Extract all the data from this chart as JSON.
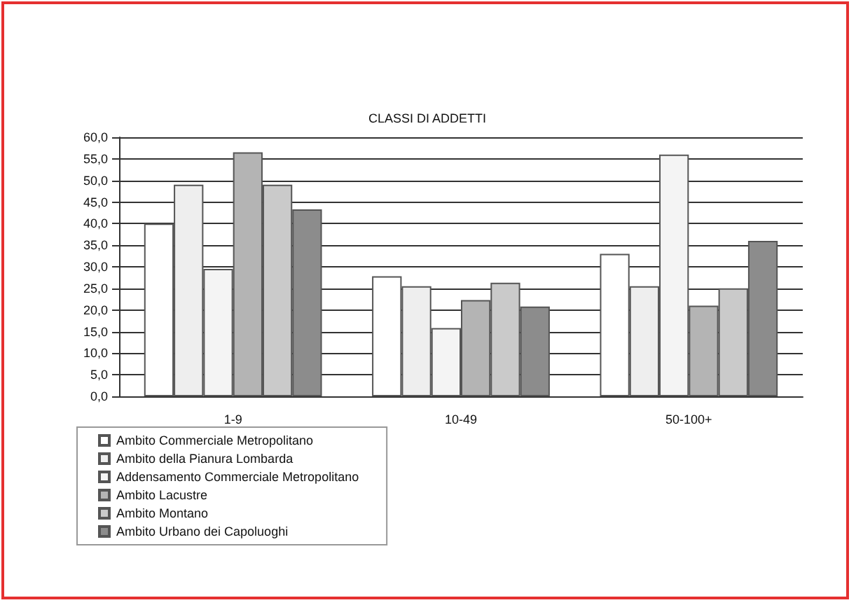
{
  "chart_data": {
    "type": "bar",
    "title": "CLASSI DI ADDETTI",
    "categories": [
      "1-9",
      "10-49",
      "50-100+"
    ],
    "series": [
      {
        "name": "Ambito Commerciale Metropolitano",
        "color": "#ffffff",
        "values": [
          40.0,
          27.8,
          33.0
        ]
      },
      {
        "name": "Ambito della Pianura Lombarda",
        "color": "#eeeeee",
        "values": [
          49.0,
          25.5,
          25.5
        ]
      },
      {
        "name": "Addensamento Commerciale Metropolitano",
        "color": "#f4f4f4",
        "values": [
          29.5,
          15.8,
          56.0
        ]
      },
      {
        "name": "Ambito Lacustre",
        "color": "#b4b4b4",
        "values": [
          56.5,
          22.3,
          21.0
        ]
      },
      {
        "name": "Ambito Montano",
        "color": "#cacaca",
        "values": [
          49.0,
          26.3,
          25.0
        ]
      },
      {
        "name": "Ambito Urbano dei Capoluoghi",
        "color": "#8c8c8c",
        "values": [
          43.3,
          20.8,
          36.0
        ]
      }
    ],
    "ylim": [
      0,
      60
    ],
    "yticks": [
      {
        "value": 0,
        "label": "0,0"
      },
      {
        "value": 5,
        "label": "5,0"
      },
      {
        "value": 10,
        "label": "10,0"
      },
      {
        "value": 15,
        "label": "15,0"
      },
      {
        "value": 20,
        "label": "20,0"
      },
      {
        "value": 25,
        "label": "25,0"
      },
      {
        "value": 30,
        "label": "30,0"
      },
      {
        "value": 35,
        "label": "35,0"
      },
      {
        "value": 40,
        "label": "40,0"
      },
      {
        "value": 45,
        "label": "45,0"
      },
      {
        "value": 50,
        "label": "50,0"
      },
      {
        "value": 55,
        "label": "55,0"
      },
      {
        "value": 60,
        "label": "60,0"
      }
    ],
    "grid": "y",
    "legend": "bottom left"
  }
}
